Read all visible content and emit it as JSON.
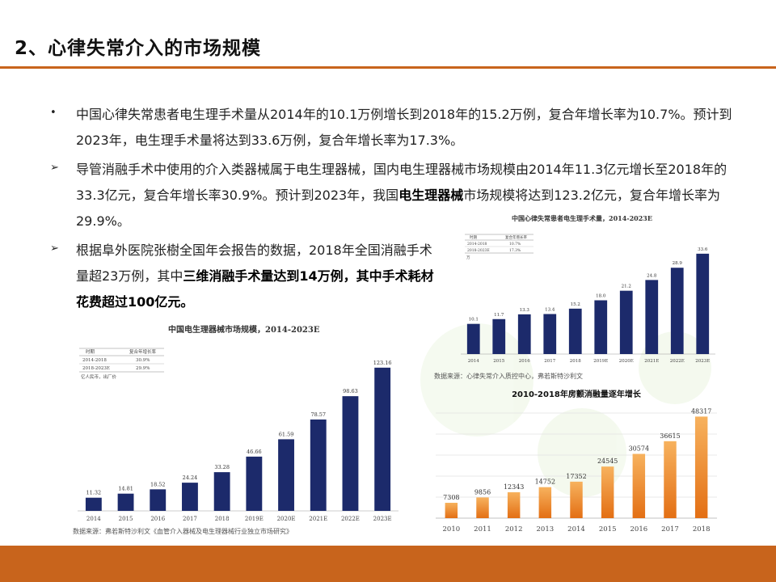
{
  "slide": {
    "title": "2、心律失常介入的市场规模",
    "bullet_markers": [
      "•",
      "➢",
      "➢"
    ],
    "paragraph1": "中国心律失常患者电生理手术量从2014年的10.1万例增长到2018年的15.2万例，复合年增长率为10.7%。预计到2023年，电生理手术量将达到33.6万例，复合年增长率为17.3%。",
    "paragraph2_a": "导管消融手术中使用的介入类器械属于电生理器械，国内电生理器械市场规模由2014年11.3亿元增长至2018年的33.3亿元，复合年增长率30.9%。预计到2023年，我国",
    "paragraph2_bold": "电生理器械",
    "paragraph2_b": "市场规模将达到123.2亿元，复合年增长率为29.9%。",
    "paragraph3_a": "根据阜外医院张樹全国年会报告的数据，2018年全国消融手术量超23万例，其中",
    "paragraph3_bold": "三维消融手术量达到14万例，其中手术耗材花费超过100亿元。"
  },
  "colors": {
    "accent": "#c8641c",
    "navy_bar": "#1c2a6b",
    "orange_bar_top": "#f7b25e",
    "orange_bar_bottom": "#e36f14"
  },
  "chart_data": [
    {
      "type": "bar",
      "title": "中国电生理器械市场规模，2014-2023E",
      "categories": [
        "2014",
        "2015",
        "2016",
        "2017",
        "2018",
        "2019E",
        "2020E",
        "2021E",
        "2022E",
        "2023E"
      ],
      "values": [
        11.32,
        14.81,
        18.52,
        24.24,
        33.28,
        46.66,
        61.59,
        78.57,
        98.63,
        123.16
      ],
      "value_labels": [
        "11.32",
        "14.81",
        "18.52",
        "24.24",
        "33.28",
        "46.66",
        "61.59",
        "78.57",
        "98.63",
        "123.16"
      ],
      "legend_table": {
        "headers": [
          "时期",
          "复合年增长率"
        ],
        "rows": [
          [
            "2014-2018",
            "30.9%"
          ],
          [
            "2018-2023E",
            "29.9%"
          ]
        ],
        "unit": "亿人民币，出厂价"
      },
      "ylim": [
        0,
        130
      ],
      "source": "数据来源：弗若斯特沙利文《血管介入器械及电生理器械行业独立市场研究》"
    },
    {
      "type": "bar",
      "title": "中国心律失常患者电生理手术量，2014-2023E",
      "categories": [
        "2014",
        "2015",
        "2016",
        "2017",
        "2018",
        "2019E",
        "2020E",
        "2021E",
        "2022E",
        "2023E"
      ],
      "values": [
        10.1,
        11.7,
        13.3,
        13.4,
        15.2,
        18.0,
        21.2,
        24.8,
        28.9,
        33.6
      ],
      "value_labels": [
        "10.1",
        "11.7",
        "13.3",
        "13.4",
        "15.2",
        "18.0",
        "21.2",
        "24.8",
        "28.9",
        "33.6"
      ],
      "legend_table": {
        "headers": [
          "时期",
          "复合年增长率"
        ],
        "rows": [
          [
            "2014-2018",
            "10.7%"
          ],
          [
            "2018-2023E",
            "17.3%"
          ]
        ],
        "unit": "万"
      },
      "ylim": [
        0,
        36
      ],
      "source": "数据来源：心律失常介入质控中心，弗若斯特沙利文"
    },
    {
      "type": "bar",
      "title": "2010-2018年房颤消融量逐年增长",
      "categories": [
        "2010",
        "2011",
        "2012",
        "2013",
        "2014",
        "2015",
        "2016",
        "2017",
        "2018"
      ],
      "values": [
        7308,
        9856,
        12343,
        14752,
        17352,
        24545,
        30574,
        36615,
        48317
      ],
      "value_labels": [
        "7308",
        "9856",
        "12343",
        "14752",
        "17352",
        "24545",
        "30574",
        "36615",
        "48317"
      ],
      "ylim": [
        0,
        50000
      ],
      "grid": true
    }
  ]
}
